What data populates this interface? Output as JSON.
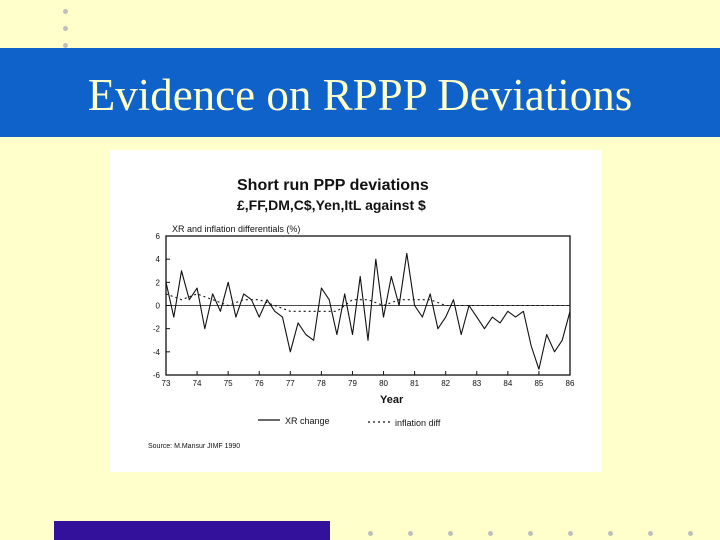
{
  "slide": {
    "title": "Evidence on RPPP Deviations",
    "background_color": "#ffffcc",
    "title_bar_color": "#0f62c9",
    "footer_bar_color": "#33119a"
  },
  "chart_data": {
    "type": "line",
    "title": "Short run PPP deviations",
    "subtitle": "£,FF,DM,C$,Yen,ItL  against  $",
    "ylabel": "XR and inflation differentials (%)",
    "xlabel": "Year",
    "ylim": [
      -6,
      6
    ],
    "yticks": [
      "6",
      "4",
      "2",
      "0",
      "-2",
      "-4",
      "-6"
    ],
    "xticks": [
      "73",
      "74",
      "75",
      "76",
      "77",
      "78",
      "79",
      "80",
      "81",
      "82",
      "83",
      "84",
      "85",
      "86"
    ],
    "grid": false,
    "legend_position": "bottom",
    "source": "Source: M.Mansur JIMF 1990",
    "series": [
      {
        "name": "XR change",
        "style": "solid",
        "x": [
          73.0,
          73.25,
          73.5,
          73.75,
          74.0,
          74.25,
          74.5,
          74.75,
          75.0,
          75.25,
          75.5,
          75.75,
          76.0,
          76.25,
          76.5,
          76.75,
          77.0,
          77.25,
          77.5,
          77.75,
          78.0,
          78.25,
          78.5,
          78.75,
          79.0,
          79.25,
          79.5,
          79.75,
          80.0,
          80.25,
          80.5,
          80.75,
          81.0,
          81.25,
          81.5,
          81.75,
          82.0,
          82.25,
          82.5,
          82.75,
          83.0,
          83.25,
          83.5,
          83.75,
          84.0,
          84.25,
          84.5,
          84.75,
          85.0,
          85.25,
          85.5,
          85.75,
          86.0
        ],
        "y": [
          2,
          -1,
          3,
          0.5,
          1.5,
          -2,
          1,
          -0.5,
          2,
          -1,
          1,
          0.5,
          -1,
          0.5,
          -0.5,
          -1,
          -4,
          -1.5,
          -2.5,
          -3,
          1.5,
          0.5,
          -2.5,
          1,
          -2.5,
          2.5,
          -3,
          4,
          -1,
          2.5,
          0,
          4.5,
          0,
          -1,
          1,
          -2,
          -1,
          0.5,
          -2.5,
          0,
          -1,
          -2,
          -1,
          -1.5,
          -0.5,
          -1,
          -0.5,
          -3.5,
          -5.5,
          -2.5,
          -4,
          -3,
          -0.5
        ]
      },
      {
        "name": "inflation diff",
        "style": "dashed",
        "x": [
          73.0,
          73.5,
          74.0,
          74.5,
          75.0,
          75.5,
          76.0,
          76.5,
          77.0,
          77.5,
          78.0,
          78.5,
          79.0,
          79.5,
          80.0,
          80.5,
          81.0,
          81.5,
          82.0,
          82.5,
          83.0,
          83.5,
          84.0,
          84.5,
          85.0,
          85.5,
          86.0
        ],
        "y": [
          1,
          0.5,
          1,
          0.5,
          0,
          0.5,
          0.5,
          0,
          -0.5,
          -0.5,
          -0.5,
          -0.5,
          0.5,
          0.5,
          0,
          0.5,
          0.5,
          0.5,
          0,
          0,
          0,
          0,
          0,
          0,
          0,
          0,
          0
        ]
      }
    ]
  }
}
